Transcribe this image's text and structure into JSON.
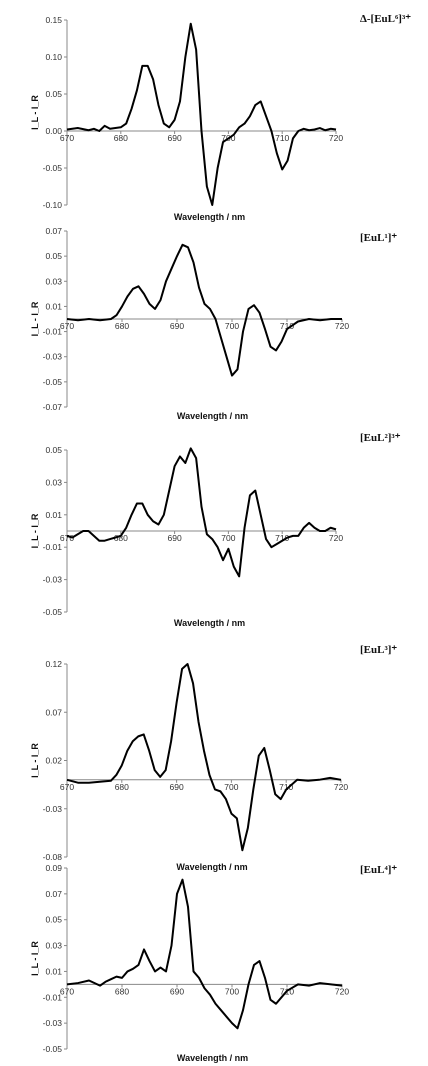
{
  "chart_data": [
    {
      "type": "line",
      "title": "Δ-[EuL⁶]³⁺",
      "xlabel": "Wavelength / nm",
      "ylabel": "I_L - I_R",
      "xlim": [
        670,
        720
      ],
      "ylim": [
        -0.1,
        0.15
      ],
      "yticks": [
        "0.15",
        "0.10",
        "0.05",
        "0.00",
        "-0.05",
        "-0.10"
      ],
      "ytick_values": [
        0.15,
        0.1,
        0.05,
        0.0,
        -0.05,
        -0.1
      ],
      "xticks": [
        "670",
        "680",
        "690",
        "700",
        "710",
        "720"
      ],
      "xtick_values": [
        670,
        680,
        690,
        700,
        710,
        720
      ],
      "series": [
        {
          "x": [
            670,
            672,
            674,
            675,
            676,
            677,
            678,
            679,
            680,
            681,
            682,
            683,
            684,
            685,
            686,
            687,
            688,
            689,
            690,
            691,
            692,
            693,
            694,
            695,
            696,
            697,
            698,
            699,
            700,
            701,
            702,
            703,
            704,
            705,
            706,
            707,
            708,
            709,
            710,
            711,
            712,
            713,
            714,
            715,
            716,
            717,
            718,
            719,
            720
          ],
          "y": [
            0.002,
            0.004,
            0.001,
            0.003,
            0.0,
            0.007,
            0.003,
            0.004,
            0.005,
            0.01,
            0.03,
            0.055,
            0.088,
            0.088,
            0.07,
            0.035,
            0.01,
            0.005,
            0.015,
            0.04,
            0.1,
            0.145,
            0.11,
            0.0,
            -0.075,
            -0.1,
            -0.05,
            -0.015,
            -0.01,
            -0.005,
            0.005,
            0.01,
            0.02,
            0.035,
            0.04,
            0.02,
            0.0,
            -0.03,
            -0.052,
            -0.04,
            -0.01,
            0.0,
            0.003,
            0.001,
            0.002,
            0.004,
            0.001,
            0.003,
            0.002
          ]
        }
      ]
    },
    {
      "type": "line",
      "title": "[EuL¹]⁺",
      "xlabel": "Wavelength / nm",
      "ylabel": "I_L - I_R",
      "xlim": [
        670,
        720
      ],
      "ylim": [
        -0.07,
        0.07
      ],
      "yticks": [
        "0.07",
        "0.05",
        "0.03",
        "0.01",
        "-0.01",
        "-0.03",
        "-0.05",
        "-0.07"
      ],
      "ytick_values": [
        0.07,
        0.05,
        0.03,
        0.01,
        -0.01,
        -0.03,
        -0.05,
        -0.07
      ],
      "xticks": [
        "670",
        "680",
        "690",
        "700",
        "710",
        "720"
      ],
      "xtick_values": [
        670,
        680,
        690,
        700,
        710,
        720
      ],
      "series": [
        {
          "x": [
            670,
            672,
            674,
            676,
            678,
            679,
            680,
            681,
            682,
            683,
            684,
            685,
            686,
            687,
            688,
            689,
            690,
            691,
            692,
            693,
            694,
            695,
            696,
            697,
            698,
            699,
            700,
            701,
            702,
            703,
            704,
            705,
            706,
            707,
            708,
            709,
            710,
            712,
            714,
            716,
            718,
            720
          ],
          "y": [
            0.0,
            -0.001,
            0.0,
            -0.001,
            0.0,
            0.003,
            0.01,
            0.018,
            0.024,
            0.026,
            0.02,
            0.012,
            0.008,
            0.015,
            0.03,
            0.04,
            0.05,
            0.059,
            0.057,
            0.045,
            0.025,
            0.012,
            0.008,
            0.0,
            -0.015,
            -0.03,
            -0.045,
            -0.04,
            -0.01,
            0.008,
            0.011,
            0.005,
            -0.008,
            -0.022,
            -0.025,
            -0.018,
            -0.008,
            -0.002,
            0.0,
            -0.001,
            0.0,
            0.0
          ]
        }
      ]
    },
    {
      "type": "line",
      "title": "[EuL²]³⁺",
      "xlabel": "Wavelength / nm",
      "ylabel": "I_L - I_R",
      "xlim": [
        670,
        720
      ],
      "ylim": [
        -0.05,
        0.05
      ],
      "yticks": [
        "0.05",
        "0.03",
        "0.01",
        "-0.01",
        "-0.03",
        "-0.05"
      ],
      "ytick_values": [
        0.05,
        0.03,
        0.01,
        -0.01,
        -0.03,
        -0.05
      ],
      "xticks": [
        "670",
        "680",
        "690",
        "700",
        "710",
        "720"
      ],
      "xtick_values": [
        670,
        680,
        690,
        700,
        710,
        720
      ],
      "series": [
        {
          "x": [
            670,
            671,
            672,
            673,
            674,
            675,
            676,
            677,
            678,
            679,
            680,
            681,
            682,
            683,
            684,
            685,
            686,
            687,
            688,
            689,
            690,
            691,
            692,
            693,
            694,
            695,
            696,
            697,
            698,
            699,
            700,
            701,
            702,
            703,
            704,
            705,
            706,
            707,
            708,
            709,
            710,
            711,
            712,
            713,
            714,
            715,
            716,
            717,
            718,
            719,
            720
          ],
          "y": [
            -0.003,
            -0.004,
            -0.002,
            0.0,
            0.0,
            -0.003,
            -0.006,
            -0.006,
            -0.005,
            -0.004,
            -0.003,
            0.002,
            0.01,
            0.017,
            0.017,
            0.01,
            0.006,
            0.004,
            0.01,
            0.025,
            0.04,
            0.046,
            0.042,
            0.051,
            0.045,
            0.015,
            -0.002,
            -0.005,
            -0.01,
            -0.018,
            -0.011,
            -0.022,
            -0.028,
            0.002,
            0.022,
            0.025,
            0.01,
            -0.005,
            -0.01,
            -0.008,
            -0.006,
            -0.004,
            -0.003,
            -0.003,
            0.002,
            0.005,
            0.002,
            0.0,
            0.0,
            0.002,
            0.001
          ]
        }
      ]
    },
    {
      "type": "line",
      "title": "[EuL³]⁺",
      "xlabel": "Wavelength / nm",
      "ylabel": "I_L - I_R",
      "xlim": [
        670,
        720
      ],
      "ylim": [
        -0.08,
        0.12
      ],
      "yticks": [
        "0.12",
        "0.07",
        "0.02",
        "-0.03",
        "-0.08"
      ],
      "ytick_values": [
        0.12,
        0.07,
        0.02,
        -0.03,
        -0.08
      ],
      "xticks": [
        "670",
        "680",
        "690",
        "700",
        "710",
        "720"
      ],
      "xtick_values": [
        670,
        680,
        690,
        700,
        710,
        720
      ],
      "series": [
        {
          "x": [
            670,
            672,
            674,
            676,
            678,
            679,
            680,
            681,
            682,
            683,
            684,
            685,
            686,
            687,
            688,
            689,
            690,
            691,
            692,
            693,
            694,
            695,
            696,
            697,
            698,
            699,
            700,
            701,
            702,
            703,
            704,
            705,
            706,
            707,
            708,
            709,
            710,
            712,
            714,
            716,
            718,
            720
          ],
          "y": [
            0.0,
            -0.003,
            -0.003,
            -0.002,
            -0.001,
            0.005,
            0.015,
            0.03,
            0.04,
            0.045,
            0.047,
            0.03,
            0.01,
            0.003,
            0.01,
            0.04,
            0.08,
            0.115,
            0.12,
            0.1,
            0.06,
            0.03,
            0.005,
            -0.01,
            -0.012,
            -0.02,
            -0.035,
            -0.04,
            -0.073,
            -0.05,
            -0.01,
            0.025,
            0.033,
            0.01,
            -0.015,
            -0.02,
            -0.01,
            0.0,
            -0.001,
            0.0,
            0.002,
            0.0
          ]
        }
      ]
    },
    {
      "type": "line",
      "title": "[EuL⁴]⁺",
      "xlabel": "Wavelength / nm",
      "ylabel": "I_L - I_R",
      "xlim": [
        670,
        720
      ],
      "ylim": [
        -0.05,
        0.09
      ],
      "yticks": [
        "0.09",
        "0.07",
        "0.05",
        "0.03",
        "0.01",
        "-0.01",
        "-0.03",
        "-0.05"
      ],
      "ytick_values": [
        0.09,
        0.07,
        0.05,
        0.03,
        0.01,
        -0.01,
        -0.03,
        -0.05
      ],
      "xticks": [
        "670",
        "680",
        "690",
        "700",
        "710",
        "720"
      ],
      "xtick_values": [
        670,
        680,
        690,
        700,
        710,
        720
      ],
      "series": [
        {
          "x": [
            670,
            672,
            674,
            676,
            677,
            678,
            679,
            680,
            681,
            682,
            683,
            684,
            685,
            686,
            687,
            688,
            689,
            690,
            691,
            692,
            693,
            694,
            695,
            696,
            697,
            698,
            699,
            700,
            701,
            702,
            703,
            704,
            705,
            706,
            707,
            708,
            710,
            712,
            714,
            716,
            718,
            720
          ],
          "y": [
            0.0,
            0.001,
            0.003,
            -0.001,
            0.002,
            0.004,
            0.006,
            0.005,
            0.01,
            0.012,
            0.015,
            0.027,
            0.018,
            0.01,
            0.013,
            0.01,
            0.03,
            0.07,
            0.081,
            0.06,
            0.01,
            0.005,
            -0.003,
            -0.008,
            -0.015,
            -0.02,
            -0.025,
            -0.03,
            -0.034,
            -0.02,
            0.0,
            0.015,
            0.018,
            0.005,
            -0.012,
            -0.015,
            -0.005,
            0.0,
            -0.001,
            0.001,
            0.0,
            -0.001
          ]
        }
      ]
    }
  ]
}
